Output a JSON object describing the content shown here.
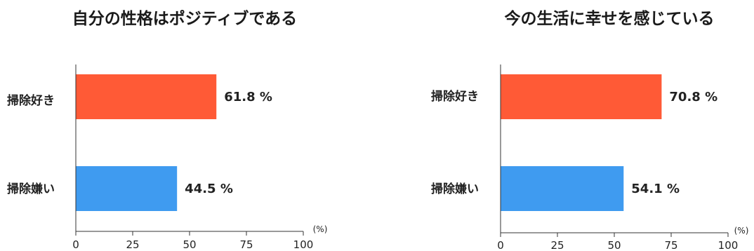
{
  "chart_data": [
    {
      "type": "bar",
      "orientation": "horizontal",
      "title": "自分の性格はポジティブである",
      "categories": [
        "掃除好き",
        "掃除嫌い"
      ],
      "values": [
        61.8,
        44.5
      ],
      "value_labels": [
        "61.8 %",
        "44.5 %"
      ],
      "colors": [
        "#ff5a36",
        "#3f9bf0"
      ],
      "xlim": [
        0,
        100
      ],
      "xticks": [
        "0",
        "25",
        "50",
        "75",
        "100"
      ],
      "x_unit": "(%)",
      "grid": false,
      "legend": "none"
    },
    {
      "type": "bar",
      "orientation": "horizontal",
      "title": "今の生活に幸せを感じている",
      "categories": [
        "掃除好き",
        "掃除嫌い"
      ],
      "values": [
        70.8,
        54.1
      ],
      "value_labels": [
        "70.8 %",
        "54.1 %"
      ],
      "colors": [
        "#ff5a36",
        "#3f9bf0"
      ],
      "xlim": [
        0,
        100
      ],
      "xticks": [
        "0",
        "25",
        "50",
        "75",
        "100"
      ],
      "x_unit": "(%)",
      "grid": false,
      "legend": "none"
    }
  ]
}
